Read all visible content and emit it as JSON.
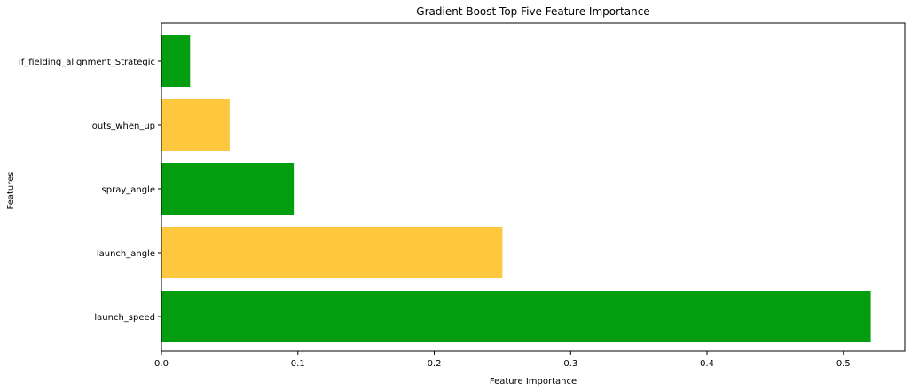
{
  "chart_data": {
    "type": "bar",
    "orientation": "horizontal",
    "title": "Gradient Boost Top Five Feature Importance",
    "xlabel": "Feature Importance",
    "ylabel": "Features",
    "categories": [
      "launch_speed",
      "launch_angle",
      "spray_angle",
      "outs_when_up",
      "if_fielding_alignment_Strategic"
    ],
    "values": [
      0.52,
      0.25,
      0.097,
      0.05,
      0.021
    ],
    "bar_colors": [
      "#029e0f",
      "#fdc83e",
      "#029e0f",
      "#fdc83e",
      "#029e0f"
    ],
    "xlim": [
      0,
      0.545
    ],
    "xticks": [
      0.0,
      0.1,
      0.2,
      0.3,
      0.4,
      0.5
    ],
    "xtick_labels": [
      "0.0",
      "0.1",
      "0.2",
      "0.3",
      "0.4",
      "0.5"
    ],
    "grid": false,
    "legend": "none"
  }
}
